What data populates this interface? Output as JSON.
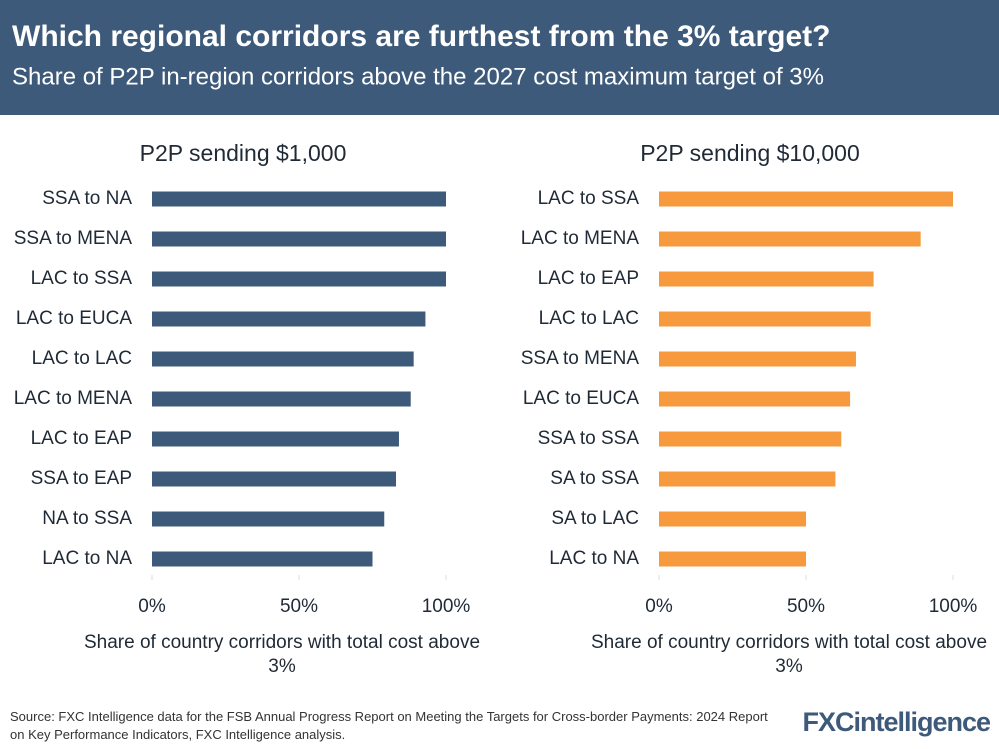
{
  "header": {
    "title": "Which regional corridors are furthest from the 3% target?",
    "subtitle": "Share of P2P in-region corridors above the 2027 cost maximum target of 3%"
  },
  "chart_data": [
    {
      "type": "hbar",
      "title": "P2P sending $1,000",
      "color": "#3d5a7a",
      "categories": [
        "SSA to NA",
        "SSA to MENA",
        "LAC to SSA",
        "LAC to EUCA",
        "LAC to LAC",
        "LAC to MENA",
        "LAC to EAP",
        "SSA to EAP",
        "NA to SSA",
        "LAC to NA"
      ],
      "values": [
        100,
        100,
        100,
        93,
        89,
        88,
        84,
        83,
        79,
        75
      ],
      "xlim": [
        0,
        100
      ],
      "xticks": [
        {
          "value": 0,
          "label": "0%"
        },
        {
          "value": 50,
          "label": "50%"
        },
        {
          "value": 100,
          "label": "100%"
        }
      ],
      "x_label": "Share of country corridors with total cost above 3%"
    },
    {
      "type": "hbar",
      "title": "P2P sending $10,000",
      "color": "#f79a3e",
      "categories": [
        "LAC to SSA",
        "LAC to MENA",
        "LAC to EAP",
        "LAC to LAC",
        "SSA to MENA",
        "LAC to EUCA",
        "SSA to SSA",
        "SA to SSA",
        "SA to LAC",
        "LAC to NA"
      ],
      "values": [
        100,
        89,
        73,
        72,
        67,
        65,
        62,
        60,
        50,
        50
      ],
      "xlim": [
        0,
        100
      ],
      "xticks": [
        {
          "value": 0,
          "label": "0%"
        },
        {
          "value": 50,
          "label": "50%"
        },
        {
          "value": 100,
          "label": "100%"
        }
      ],
      "x_label": "Share of country corridors with total cost above 3%"
    }
  ],
  "footer": {
    "source": "Source: FXC Intelligence data for the FSB Annual Progress Report on Meeting the Targets for Cross-border Payments: 2024 Report on Key Performance Indicators, FXC Intelligence analysis.",
    "logo": "FXCintelligence"
  }
}
